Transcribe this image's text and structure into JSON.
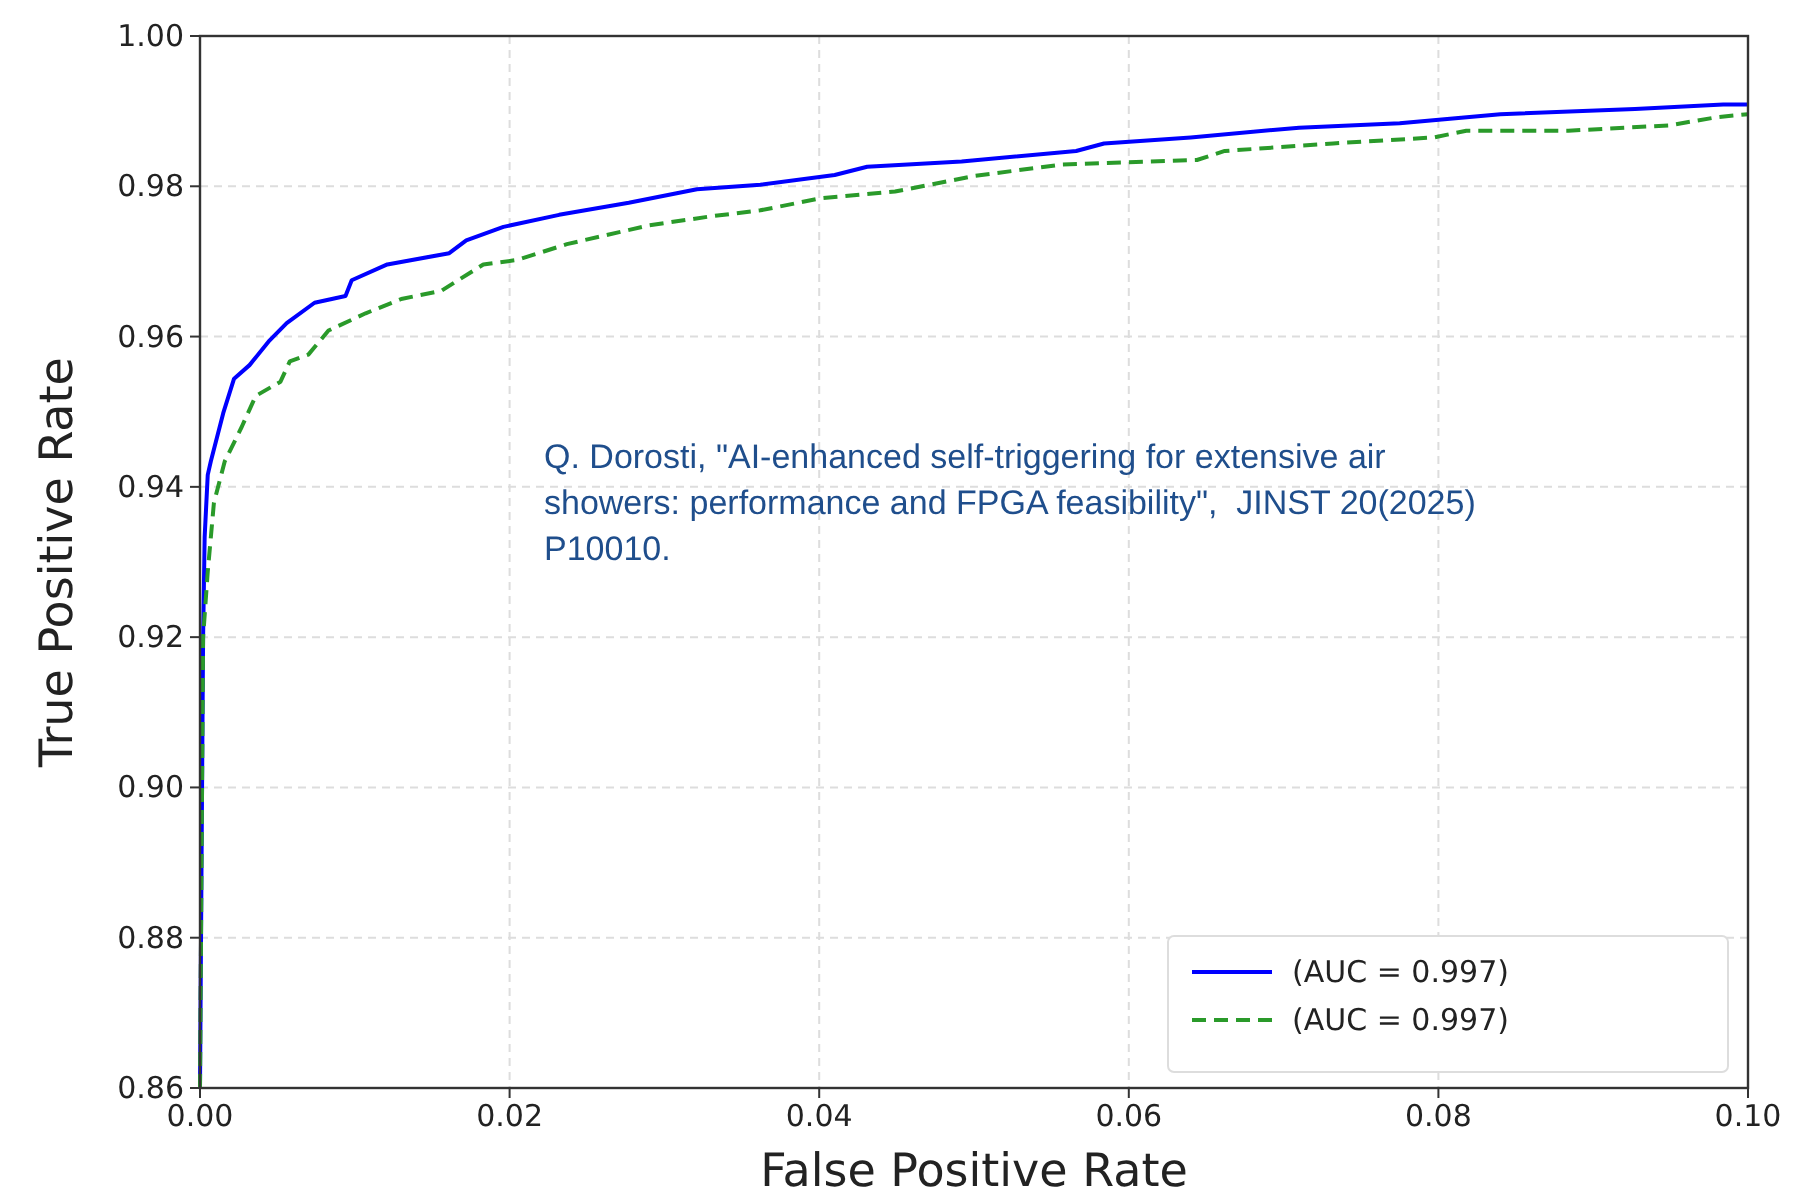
{
  "chart_data": {
    "type": "line",
    "xlabel": "False Positive Rate",
    "ylabel": "True Positive Rate",
    "xlim": [
      0,
      0.1
    ],
    "ylim": [
      0.86,
      1.0
    ],
    "xticks": [
      {
        "value": 0,
        "label": "0.00"
      },
      {
        "value": 0.02,
        "label": "0.02"
      },
      {
        "value": 0.04,
        "label": "0.04"
      },
      {
        "value": 0.06,
        "label": "0.06"
      },
      {
        "value": 0.08,
        "label": "0.08"
      },
      {
        "value": 0.1,
        "label": "0.10"
      }
    ],
    "yticks": [
      {
        "value": 0.86,
        "label": "0.86"
      },
      {
        "value": 0.88,
        "label": "0.88"
      },
      {
        "value": 0.9,
        "label": "0.90"
      },
      {
        "value": 0.92,
        "label": "0.92"
      },
      {
        "value": 0.94,
        "label": "0.94"
      },
      {
        "value": 0.96,
        "label": "0.96"
      },
      {
        "value": 0.98,
        "label": "0.98"
      },
      {
        "value": 1.0,
        "label": "1.00"
      }
    ],
    "grid": true,
    "legend": "bottom right",
    "marker": "none",
    "annotations": [
      "Q. Dorosti, \"AI-enhanced self-triggering for extensive air showers: performance and FPGA feasibility\",  JINST 20(2025) P10010."
    ],
    "series": [
      {
        "name": "(AUC = 0.997)",
        "color": "#0000ff",
        "line_style": "solid",
        "x": [
          0,
          0.0002,
          0.0003,
          0.0005,
          0.0007,
          0.0015,
          0.0022,
          0.0032,
          0.0045,
          0.0056,
          0.0074,
          0.0094,
          0.0098,
          0.0121,
          0.0161,
          0.0172,
          0.0196,
          0.0232,
          0.0277,
          0.0321,
          0.0362,
          0.041,
          0.0431,
          0.0492,
          0.0566,
          0.0584,
          0.064,
          0.071,
          0.0775,
          0.084,
          0.0927,
          0.0984,
          0.1
        ],
        "values": [
          0.86,
          0.92,
          0.9333,
          0.9416,
          0.9434,
          0.9498,
          0.9544,
          0.9562,
          0.9595,
          0.9618,
          0.9645,
          0.9654,
          0.9675,
          0.9696,
          0.9711,
          0.9728,
          0.9746,
          0.9762,
          0.9778,
          0.9796,
          0.9802,
          0.9815,
          0.9826,
          0.9833,
          0.9847,
          0.9857,
          0.9865,
          0.9878,
          0.9884,
          0.9896,
          0.9903,
          0.9909,
          0.9909
        ]
      },
      {
        "name": "(AUC = 0.997)",
        "color": "#2a9a2a",
        "line_style": "dashed",
        "x": [
          0,
          0.0002,
          0.0005,
          0.0009,
          0.0016,
          0.0027,
          0.0036,
          0.0052,
          0.0058,
          0.007,
          0.0083,
          0.0107,
          0.013,
          0.0156,
          0.0183,
          0.0205,
          0.0237,
          0.029,
          0.033,
          0.0362,
          0.0401,
          0.0449,
          0.0501,
          0.0557,
          0.0644,
          0.0662,
          0.0732,
          0.0797,
          0.0818,
          0.0884,
          0.0949,
          0.098,
          0.1
        ],
        "values": [
          0.86,
          0.92,
          0.9287,
          0.9379,
          0.9434,
          0.948,
          0.9521,
          0.954,
          0.9567,
          0.9576,
          0.9608,
          0.9631,
          0.965,
          0.9661,
          0.9696,
          0.9702,
          0.9723,
          0.9748,
          0.976,
          0.9768,
          0.9784,
          0.9793,
          0.9814,
          0.9829,
          0.9835,
          0.9847,
          0.9857,
          0.9865,
          0.9874,
          0.9874,
          0.9881,
          0.9892,
          0.9896
        ]
      }
    ]
  }
}
